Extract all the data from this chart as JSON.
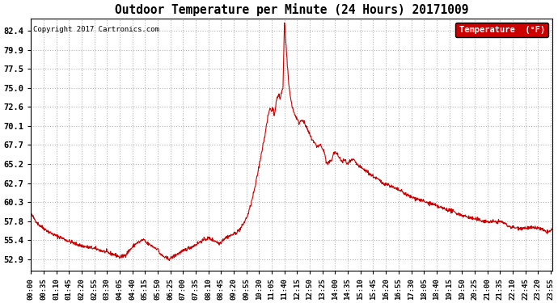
{
  "title": "Outdoor Temperature per Minute (24 Hours) 20171009",
  "copyright_text": "Copyright 2017 Cartronics.com",
  "legend_label": "Temperature  (°F)",
  "line_color": "#cc0000",
  "background_color": "#ffffff",
  "grid_color": "#aaaaaa",
  "yticks": [
    52.9,
    55.4,
    57.8,
    60.3,
    62.7,
    65.2,
    67.7,
    70.1,
    72.6,
    75.0,
    77.5,
    79.9,
    82.4
  ],
  "ylim": [
    51.5,
    84.0
  ],
  "xtick_labels": [
    "00:00",
    "00:35",
    "01:10",
    "01:45",
    "02:20",
    "02:55",
    "03:30",
    "04:05",
    "04:40",
    "05:15",
    "05:50",
    "06:25",
    "07:00",
    "07:35",
    "08:10",
    "08:45",
    "09:20",
    "09:55",
    "10:30",
    "11:05",
    "11:40",
    "12:15",
    "12:50",
    "13:25",
    "14:00",
    "14:35",
    "15:10",
    "15:45",
    "16:20",
    "16:55",
    "17:30",
    "18:05",
    "18:40",
    "19:15",
    "19:50",
    "20:25",
    "21:00",
    "21:35",
    "22:10",
    "22:45",
    "23:20",
    "23:55"
  ],
  "control_points": [
    [
      0,
      58.8
    ],
    [
      20,
      57.5
    ],
    [
      40,
      56.8
    ],
    [
      60,
      56.2
    ],
    [
      80,
      55.8
    ],
    [
      100,
      55.4
    ],
    [
      120,
      55.0
    ],
    [
      140,
      54.7
    ],
    [
      160,
      54.5
    ],
    [
      180,
      54.3
    ],
    [
      200,
      54.0
    ],
    [
      220,
      53.7
    ],
    [
      240,
      53.4
    ],
    [
      245,
      53.2
    ],
    [
      260,
      53.5
    ],
    [
      270,
      54.0
    ],
    [
      280,
      54.5
    ],
    [
      290,
      55.0
    ],
    [
      300,
      55.2
    ],
    [
      310,
      55.5
    ],
    [
      315,
      55.3
    ],
    [
      320,
      55.0
    ],
    [
      330,
      54.8
    ],
    [
      340,
      54.5
    ],
    [
      350,
      54.3
    ],
    [
      355,
      53.8
    ],
    [
      360,
      53.5
    ],
    [
      370,
      53.2
    ],
    [
      380,
      53.0
    ],
    [
      390,
      53.2
    ],
    [
      400,
      53.5
    ],
    [
      410,
      53.8
    ],
    [
      420,
      54.0
    ],
    [
      430,
      54.3
    ],
    [
      440,
      54.5
    ],
    [
      450,
      54.7
    ],
    [
      460,
      55.0
    ],
    [
      470,
      55.3
    ],
    [
      480,
      55.5
    ],
    [
      490,
      55.7
    ],
    [
      500,
      55.5
    ],
    [
      510,
      55.3
    ],
    [
      520,
      55.0
    ],
    [
      525,
      55.2
    ],
    [
      530,
      55.5
    ],
    [
      540,
      55.8
    ],
    [
      550,
      56.0
    ],
    [
      560,
      56.2
    ],
    [
      570,
      56.5
    ],
    [
      580,
      57.0
    ],
    [
      590,
      57.8
    ],
    [
      600,
      58.8
    ],
    [
      610,
      60.5
    ],
    [
      620,
      62.5
    ],
    [
      630,
      65.0
    ],
    [
      640,
      67.5
    ],
    [
      650,
      70.0
    ],
    [
      655,
      71.5
    ],
    [
      660,
      72.5
    ],
    [
      665,
      72.0
    ],
    [
      668,
      72.5
    ],
    [
      672,
      71.5
    ],
    [
      676,
      72.8
    ],
    [
      680,
      73.8
    ],
    [
      685,
      74.2
    ],
    [
      688,
      73.5
    ],
    [
      692,
      74.5
    ],
    [
      696,
      75.0
    ],
    [
      700,
      83.5
    ],
    [
      704,
      81.0
    ],
    [
      708,
      78.0
    ],
    [
      712,
      75.5
    ],
    [
      716,
      74.0
    ],
    [
      720,
      73.0
    ],
    [
      725,
      72.0
    ],
    [
      730,
      71.5
    ],
    [
      735,
      71.0
    ],
    [
      740,
      70.5
    ],
    [
      745,
      70.8
    ],
    [
      750,
      71.0
    ],
    [
      755,
      70.5
    ],
    [
      760,
      70.0
    ],
    [
      765,
      69.5
    ],
    [
      770,
      69.0
    ],
    [
      775,
      68.5
    ],
    [
      780,
      68.2
    ],
    [
      785,
      67.8
    ],
    [
      790,
      67.5
    ],
    [
      800,
      67.7
    ],
    [
      805,
      67.2
    ],
    [
      810,
      66.8
    ],
    [
      815,
      65.5
    ],
    [
      820,
      65.2
    ],
    [
      825,
      65.5
    ],
    [
      830,
      65.8
    ],
    [
      835,
      66.5
    ],
    [
      840,
      66.8
    ],
    [
      845,
      66.5
    ],
    [
      850,
      66.2
    ],
    [
      855,
      65.8
    ],
    [
      860,
      65.5
    ],
    [
      865,
      65.8
    ],
    [
      870,
      65.5
    ],
    [
      875,
      65.2
    ],
    [
      880,
      65.5
    ],
    [
      890,
      65.8
    ],
    [
      895,
      65.5
    ],
    [
      900,
      65.2
    ],
    [
      910,
      64.8
    ],
    [
      920,
      64.5
    ],
    [
      930,
      64.2
    ],
    [
      940,
      63.8
    ],
    [
      950,
      63.5
    ],
    [
      960,
      63.2
    ],
    [
      970,
      62.8
    ],
    [
      980,
      62.7
    ],
    [
      990,
      62.5
    ],
    [
      1000,
      62.2
    ],
    [
      1010,
      62.0
    ],
    [
      1020,
      61.8
    ],
    [
      1030,
      61.5
    ],
    [
      1040,
      61.2
    ],
    [
      1050,
      61.0
    ],
    [
      1060,
      60.8
    ],
    [
      1070,
      60.7
    ],
    [
      1080,
      60.5
    ],
    [
      1090,
      60.3
    ],
    [
      1100,
      60.2
    ],
    [
      1110,
      60.0
    ],
    [
      1120,
      59.8
    ],
    [
      1140,
      59.5
    ],
    [
      1160,
      59.2
    ],
    [
      1180,
      58.8
    ],
    [
      1200,
      58.5
    ],
    [
      1220,
      58.2
    ],
    [
      1240,
      58.0
    ],
    [
      1260,
      57.8
    ],
    [
      1280,
      57.8
    ],
    [
      1300,
      57.8
    ],
    [
      1310,
      57.5
    ],
    [
      1320,
      57.2
    ],
    [
      1340,
      57.0
    ],
    [
      1360,
      57.0
    ],
    [
      1380,
      57.0
    ],
    [
      1400,
      57.0
    ],
    [
      1410,
      56.8
    ],
    [
      1420,
      56.5
    ],
    [
      1430,
      56.5
    ],
    [
      1440,
      56.8
    ]
  ],
  "noise_seed": 42,
  "noise_level": 0.12
}
